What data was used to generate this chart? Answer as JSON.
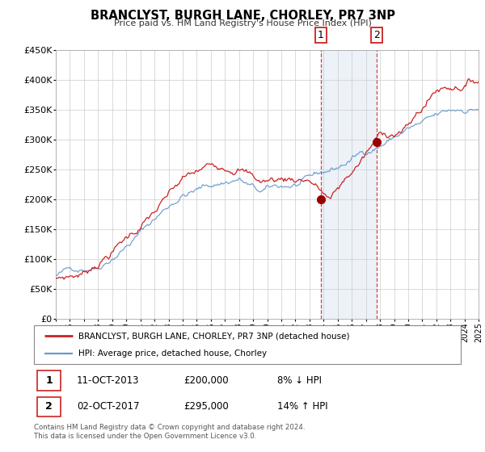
{
  "title": "BRANCLYST, BURGH LANE, CHORLEY, PR7 3NP",
  "subtitle": "Price paid vs. HM Land Registry's House Price Index (HPI)",
  "ylim": [
    0,
    450000
  ],
  "xlim": [
    1995,
    2025
  ],
  "yticks": [
    0,
    50000,
    100000,
    150000,
    200000,
    250000,
    300000,
    350000,
    400000,
    450000
  ],
  "ytick_labels": [
    "£0",
    "£50K",
    "£100K",
    "£150K",
    "£200K",
    "£250K",
    "£300K",
    "£350K",
    "£400K",
    "£450K"
  ],
  "hpi_color": "#6699cc",
  "price_color": "#cc2222",
  "dot_color": "#990000",
  "background_color": "#ffffff",
  "grid_color": "#cccccc",
  "point1_x": 2013.79,
  "point1_y": 200000,
  "point2_x": 2017.75,
  "point2_y": 295000,
  "point1_label": "1",
  "point2_label": "2",
  "point1_date": "11-OCT-2013",
  "point1_price": "£200,000",
  "point1_hpi": "8% ↓ HPI",
  "point2_date": "02-OCT-2017",
  "point2_price": "£295,000",
  "point2_hpi": "14% ↑ HPI",
  "legend_label1": "BRANCLYST, BURGH LANE, CHORLEY, PR7 3NP (detached house)",
  "legend_label2": "HPI: Average price, detached house, Chorley",
  "footer1": "Contains HM Land Registry data © Crown copyright and database right 2024.",
  "footer2": "This data is licensed under the Open Government Licence v3.0."
}
